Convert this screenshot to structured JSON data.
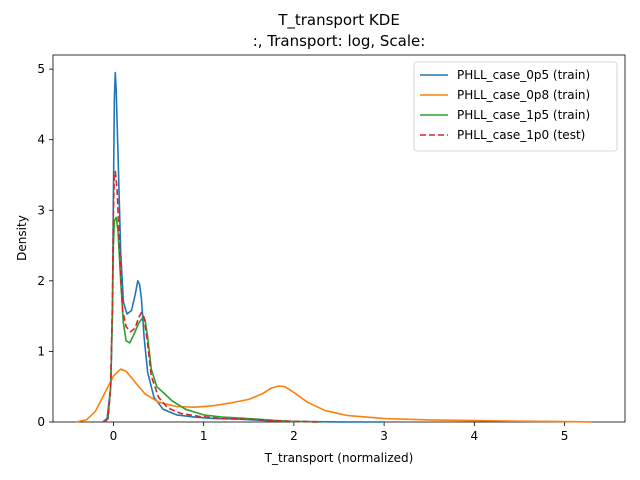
{
  "chart_data": {
    "type": "line",
    "title": "T_transport KDE",
    "subtitle": ":, Transport: log, Scale:",
    "xlabel": "T_transport (normalized)",
    "ylabel": "Density",
    "xlim": [
      -0.67,
      5.67
    ],
    "ylim": [
      0,
      5.2
    ],
    "xticks": [
      "0",
      "1",
      "2",
      "3",
      "4",
      "5"
    ],
    "yticks": [
      "0",
      "1",
      "2",
      "3",
      "4",
      "5"
    ],
    "grid": false,
    "legend_position": "top-right",
    "series": [
      {
        "name": "PHLL_case_0p5 (train)",
        "color": "#1f77b4",
        "dash": "solid",
        "points": [
          [
            -0.12,
            0
          ],
          [
            -0.07,
            0.05
          ],
          [
            -0.03,
            0.5
          ],
          [
            -0.01,
            1.6
          ],
          [
            0.0,
            3.2
          ],
          [
            0.01,
            4.6
          ],
          [
            0.02,
            4.95
          ],
          [
            0.03,
            4.7
          ],
          [
            0.05,
            3.8
          ],
          [
            0.08,
            2.4
          ],
          [
            0.11,
            1.7
          ],
          [
            0.15,
            1.53
          ],
          [
            0.2,
            1.58
          ],
          [
            0.24,
            1.8
          ],
          [
            0.27,
            2.0
          ],
          [
            0.29,
            1.95
          ],
          [
            0.31,
            1.75
          ],
          [
            0.34,
            1.2
          ],
          [
            0.38,
            0.7
          ],
          [
            0.45,
            0.35
          ],
          [
            0.55,
            0.18
          ],
          [
            0.7,
            0.1
          ],
          [
            0.9,
            0.07
          ],
          [
            1.1,
            0.05
          ],
          [
            1.4,
            0.04
          ],
          [
            1.7,
            0.02
          ],
          [
            2.0,
            0.008
          ],
          [
            2.5,
            0.002
          ],
          [
            3.0,
            0.0
          ]
        ]
      },
      {
        "name": "PHLL_case_0p8 (train)",
        "color": "#ff7f0e",
        "dash": "solid",
        "points": [
          [
            -0.42,
            0
          ],
          [
            -0.3,
            0.03
          ],
          [
            -0.2,
            0.15
          ],
          [
            -0.1,
            0.4
          ],
          [
            0.0,
            0.65
          ],
          [
            0.08,
            0.75
          ],
          [
            0.14,
            0.72
          ],
          [
            0.25,
            0.55
          ],
          [
            0.35,
            0.4
          ],
          [
            0.5,
            0.28
          ],
          [
            0.7,
            0.22
          ],
          [
            0.9,
            0.21
          ],
          [
            1.1,
            0.23
          ],
          [
            1.3,
            0.27
          ],
          [
            1.5,
            0.32
          ],
          [
            1.65,
            0.4
          ],
          [
            1.75,
            0.48
          ],
          [
            1.83,
            0.51
          ],
          [
            1.9,
            0.5
          ],
          [
            2.0,
            0.42
          ],
          [
            2.15,
            0.28
          ],
          [
            2.35,
            0.16
          ],
          [
            2.6,
            0.09
          ],
          [
            3.0,
            0.05
          ],
          [
            3.5,
            0.03
          ],
          [
            4.0,
            0.02
          ],
          [
            4.5,
            0.012
          ],
          [
            5.0,
            0.005
          ],
          [
            5.3,
            0.002
          ]
        ]
      },
      {
        "name": "PHLL_case_1p5 (train)",
        "color": "#2ca02c",
        "dash": "solid",
        "points": [
          [
            -0.1,
            0
          ],
          [
            -0.06,
            0.05
          ],
          [
            -0.03,
            0.5
          ],
          [
            -0.01,
            1.6
          ],
          [
            0.0,
            2.5
          ],
          [
            0.01,
            2.85
          ],
          [
            0.03,
            2.9
          ],
          [
            0.05,
            2.7
          ],
          [
            0.08,
            2.0
          ],
          [
            0.11,
            1.4
          ],
          [
            0.14,
            1.15
          ],
          [
            0.18,
            1.12
          ],
          [
            0.23,
            1.25
          ],
          [
            0.28,
            1.4
          ],
          [
            0.32,
            1.47
          ],
          [
            0.35,
            1.45
          ],
          [
            0.38,
            1.2
          ],
          [
            0.42,
            0.75
          ],
          [
            0.48,
            0.5
          ],
          [
            0.55,
            0.42
          ],
          [
            0.65,
            0.3
          ],
          [
            0.8,
            0.18
          ],
          [
            1.0,
            0.1
          ],
          [
            1.2,
            0.07
          ],
          [
            1.4,
            0.055
          ],
          [
            1.6,
            0.04
          ],
          [
            1.8,
            0.02
          ],
          [
            2.0,
            0.008
          ],
          [
            2.3,
            0.0
          ]
        ]
      },
      {
        "name": "PHLL_case_1p0 (test)",
        "color": "#d62728",
        "dash": "dashed",
        "points": [
          [
            -0.1,
            0
          ],
          [
            -0.06,
            0.05
          ],
          [
            -0.03,
            0.5
          ],
          [
            -0.01,
            1.8
          ],
          [
            0.0,
            3.0
          ],
          [
            0.01,
            3.5
          ],
          [
            0.02,
            3.55
          ],
          [
            0.04,
            3.3
          ],
          [
            0.07,
            2.4
          ],
          [
            0.1,
            1.6
          ],
          [
            0.14,
            1.35
          ],
          [
            0.19,
            1.28
          ],
          [
            0.24,
            1.33
          ],
          [
            0.28,
            1.48
          ],
          [
            0.31,
            1.55
          ],
          [
            0.34,
            1.48
          ],
          [
            0.38,
            1.1
          ],
          [
            0.42,
            0.65
          ],
          [
            0.5,
            0.35
          ],
          [
            0.6,
            0.2
          ],
          [
            0.75,
            0.12
          ],
          [
            0.95,
            0.08
          ],
          [
            1.2,
            0.05
          ],
          [
            1.5,
            0.04
          ],
          [
            1.8,
            0.02
          ],
          [
            2.0,
            0.008
          ],
          [
            2.3,
            0.0
          ]
        ]
      }
    ]
  }
}
